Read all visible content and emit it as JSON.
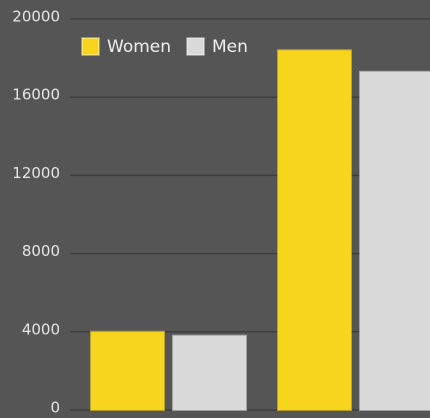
{
  "chart_data": {
    "type": "bar",
    "categories": [
      null,
      null
    ],
    "series": [
      {
        "name": "Women",
        "color": "#f7d51d",
        "values": [
          4000,
          18400
        ]
      },
      {
        "name": "Men",
        "color": "#d9d9d9",
        "values": [
          3800,
          17300
        ]
      }
    ],
    "ylim": [
      0,
      20000
    ],
    "yticks": [
      0,
      4000,
      8000,
      12000,
      16000,
      20000
    ],
    "grid": true,
    "legend": "top-left"
  }
}
